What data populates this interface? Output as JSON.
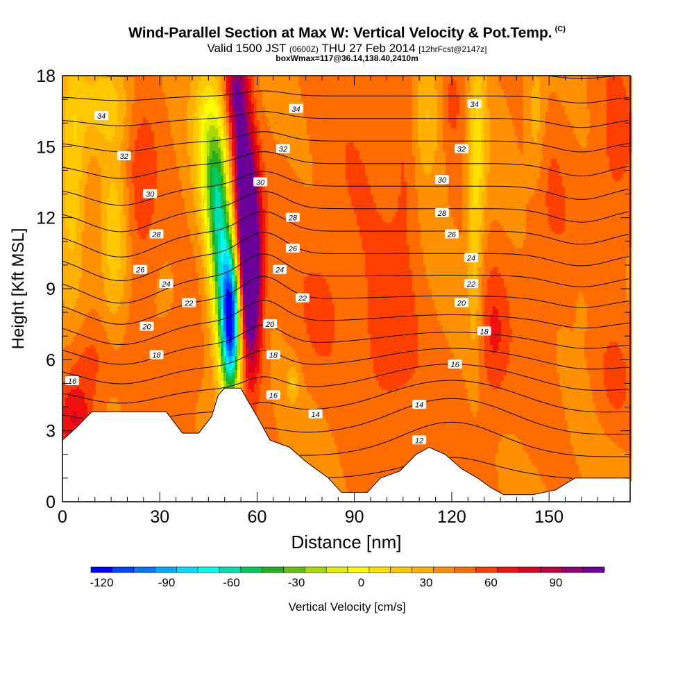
{
  "chart_data": {
    "type": "heatmap",
    "title": "Wind-Parallel Section at Max W: Vertical Velocity & Pot.Temp.",
    "title_mark": "(C)",
    "subtitle": {
      "valid": "Valid 1500 JST",
      "utc": "(0600Z)",
      "date": "THU 27 Feb 2014",
      "forecast": "[12hrFcst@2147z]"
    },
    "subtitle2": "boxWmax=117@36.14,138.40,2410m",
    "xlabel": "Distance [nm]",
    "ylabel": "Height [Kft MSL]",
    "xlim": [
      0,
      175
    ],
    "ylim": [
      0,
      18
    ],
    "xticks": [
      0,
      30,
      60,
      90,
      120,
      150
    ],
    "yticks": [
      0,
      3,
      6,
      9,
      12,
      15,
      18
    ],
    "colorbar": {
      "label": "Vertical Velocity [cm/s]",
      "ticks": [
        -120,
        -90,
        -60,
        -30,
        0,
        30,
        60,
        90
      ],
      "range": [
        -125,
        112.5
      ],
      "step": 7.5,
      "colors": [
        "#0000ff",
        "#0044ff",
        "#0077ff",
        "#00aaff",
        "#00ddff",
        "#00ffee",
        "#00e0b0",
        "#00c860",
        "#22b020",
        "#66c010",
        "#a8dc00",
        "#e2ef00",
        "#ffff00",
        "#ffe000",
        "#ffc800",
        "#ffb000",
        "#ff9000",
        "#ff6c00",
        "#ff4000",
        "#f01010",
        "#d80020",
        "#b80040",
        "#900070",
        "#6a0098"
      ]
    },
    "terrain": [
      [
        0,
        2.6
      ],
      [
        4,
        3.1
      ],
      [
        9,
        3.8
      ],
      [
        18,
        3.8
      ],
      [
        32,
        3.8
      ],
      [
        37,
        2.9
      ],
      [
        42,
        2.9
      ],
      [
        46,
        3.6
      ],
      [
        48,
        4.5
      ],
      [
        50,
        4.8
      ],
      [
        55,
        4.8
      ],
      [
        57,
        4.3
      ],
      [
        60,
        3.6
      ],
      [
        64,
        2.6
      ],
      [
        70,
        2.3
      ],
      [
        75,
        1.7
      ],
      [
        82,
        1.0
      ],
      [
        86,
        0.4
      ],
      [
        90,
        0.4
      ],
      [
        94,
        0.4
      ],
      [
        98,
        1.0
      ],
      [
        104,
        1.3
      ],
      [
        109,
        2.0
      ],
      [
        113,
        2.3
      ],
      [
        118,
        2.0
      ],
      [
        123,
        1.4
      ],
      [
        128,
        1.0
      ],
      [
        132,
        0.6
      ],
      [
        136,
        0.3
      ],
      [
        145,
        0.3
      ],
      [
        152,
        0.5
      ],
      [
        158,
        1.0
      ],
      [
        165,
        1.0
      ],
      [
        175,
        1.0
      ]
    ],
    "w_features": [
      {
        "x": 52,
        "y": 7.5,
        "sx": 2.2,
        "sy": 2.2,
        "w": -120
      },
      {
        "x": 49,
        "y": 10.5,
        "sx": 2.6,
        "sy": 3.0,
        "w": -55
      },
      {
        "x": 47,
        "y": 13.5,
        "sx": 2.6,
        "sy": 2.5,
        "w": -35
      },
      {
        "x": 58,
        "y": 9.0,
        "sx": 2.3,
        "sy": 2.4,
        "w": 65
      },
      {
        "x": 57,
        "y": 12.0,
        "sx": 2.4,
        "sy": 2.2,
        "w": 55
      },
      {
        "x": 55,
        "y": 15.5,
        "sx": 2.4,
        "sy": 2.6,
        "w": 35
      },
      {
        "x": 53,
        "y": 17.5,
        "sx": 2.2,
        "sy": 1.2,
        "w": 25
      },
      {
        "x": 3,
        "y": 14.0,
        "sx": 3.0,
        "sy": 3.5,
        "w": -25
      },
      {
        "x": 14,
        "y": 17.0,
        "sx": 6.0,
        "sy": 1.5,
        "w": -20
      },
      {
        "x": 16,
        "y": 11.0,
        "sx": 3.0,
        "sy": 2.5,
        "w": -22
      },
      {
        "x": 44,
        "y": 15.5,
        "sx": 3.0,
        "sy": 2.5,
        "w": -22
      },
      {
        "x": 112,
        "y": 16.5,
        "sx": 4.0,
        "sy": 2.0,
        "w": -20
      },
      {
        "x": 128,
        "y": 15.0,
        "sx": 2.0,
        "sy": 3.0,
        "w": -22
      },
      {
        "x": 127,
        "y": 10.0,
        "sx": 1.5,
        "sy": 3.0,
        "w": -14
      },
      {
        "x": 146,
        "y": 16.0,
        "sx": 2.0,
        "sy": 2.0,
        "w": -14
      },
      {
        "x": 71,
        "y": 5.0,
        "sx": 1.3,
        "sy": 0.6,
        "w": -15
      },
      {
        "x": 160,
        "y": 8.0,
        "sx": 1.0,
        "sy": 0.6,
        "w": -10
      },
      {
        "x": 4,
        "y": 3.5,
        "sx": 4.0,
        "sy": 1.2,
        "w": 22
      },
      {
        "x": 8,
        "y": 6.0,
        "sx": 5.0,
        "sy": 1.2,
        "w": 12
      },
      {
        "x": 24,
        "y": 13.0,
        "sx": 4.0,
        "sy": 3.0,
        "w": 14
      },
      {
        "x": 100,
        "y": 7.0,
        "sx": 7.0,
        "sy": 3.0,
        "w": 14
      },
      {
        "x": 106,
        "y": 15.0,
        "sx": 3.0,
        "sy": 3.0,
        "w": 12
      },
      {
        "x": 120,
        "y": 17.0,
        "sx": 3.0,
        "sy": 1.5,
        "w": 12
      },
      {
        "x": 133,
        "y": 7.0,
        "sx": 3.0,
        "sy": 2.0,
        "w": 14
      },
      {
        "x": 80,
        "y": 8.0,
        "sx": 5.0,
        "sy": 2.0,
        "w": 8
      },
      {
        "x": 150,
        "y": 13.0,
        "sx": 5.0,
        "sy": 3.0,
        "w": 6
      },
      {
        "x": 170,
        "y": 15.0,
        "sx": 4.0,
        "sy": 3.0,
        "w": 8
      },
      {
        "x": 170,
        "y": 5.0,
        "sx": 4.0,
        "sy": 1.5,
        "w": 10
      },
      {
        "x": 90,
        "y": 13.0,
        "sx": 6.0,
        "sy": 3.0,
        "w": 4
      },
      {
        "x": 35,
        "y": 6.0,
        "sx": 4.0,
        "sy": 1.5,
        "w": 5
      }
    ],
    "theta_contour_levels": [
      12,
      13,
      14,
      15,
      16,
      17,
      18,
      19,
      20,
      21,
      22,
      23,
      24,
      25,
      26,
      27,
      28,
      29,
      30,
      31,
      32,
      33,
      34,
      35
    ],
    "theta_labels": [
      {
        "x": 12,
        "y": 16.3,
        "t": "34"
      },
      {
        "x": 72,
        "y": 16.6,
        "t": "34"
      },
      {
        "x": 127,
        "y": 16.8,
        "t": "34"
      },
      {
        "x": 19,
        "y": 14.6,
        "t": "32"
      },
      {
        "x": 68,
        "y": 14.9,
        "t": "32"
      },
      {
        "x": 123,
        "y": 14.9,
        "t": "32"
      },
      {
        "x": 27,
        "y": 13.0,
        "t": "30"
      },
      {
        "x": 61,
        "y": 13.5,
        "t": "30"
      },
      {
        "x": 117,
        "y": 13.6,
        "t": "30"
      },
      {
        "x": 29,
        "y": 11.3,
        "t": "28"
      },
      {
        "x": 71,
        "y": 12.0,
        "t": "28"
      },
      {
        "x": 117,
        "y": 12.2,
        "t": "28"
      },
      {
        "x": 24,
        "y": 9.8,
        "t": "26"
      },
      {
        "x": 71,
        "y": 10.7,
        "t": "26"
      },
      {
        "x": 120,
        "y": 11.3,
        "t": "26"
      },
      {
        "x": 32,
        "y": 9.2,
        "t": "24"
      },
      {
        "x": 67,
        "y": 9.8,
        "t": "24"
      },
      {
        "x": 126,
        "y": 10.3,
        "t": "24"
      },
      {
        "x": 39,
        "y": 8.4,
        "t": "22"
      },
      {
        "x": 74,
        "y": 8.6,
        "t": "22"
      },
      {
        "x": 126,
        "y": 9.2,
        "t": "22"
      },
      {
        "x": 26,
        "y": 7.4,
        "t": "20"
      },
      {
        "x": 64,
        "y": 7.5,
        "t": "20"
      },
      {
        "x": 123,
        "y": 8.4,
        "t": "20"
      },
      {
        "x": 29,
        "y": 6.2,
        "t": "18"
      },
      {
        "x": 65,
        "y": 6.2,
        "t": "18"
      },
      {
        "x": 130,
        "y": 7.2,
        "t": "18"
      },
      {
        "x": 3,
        "y": 5.1,
        "t": "16"
      },
      {
        "x": 121,
        "y": 5.8,
        "t": "16"
      },
      {
        "x": 65,
        "y": 4.5,
        "t": "16"
      },
      {
        "x": 78,
        "y": 3.7,
        "t": "14"
      },
      {
        "x": 110,
        "y": 4.1,
        "t": "14"
      },
      {
        "x": 110,
        "y": 2.6,
        "t": "12"
      }
    ]
  }
}
